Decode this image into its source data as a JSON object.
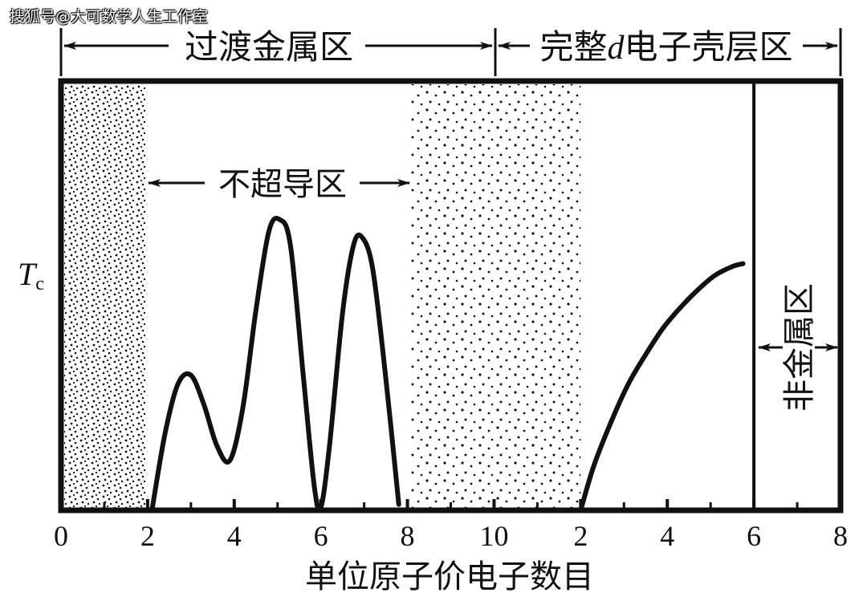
{
  "watermark": "搜狐号@大可数学人生工作室",
  "regions": {
    "transition": "过渡金属区",
    "filled_d_prefix": "完整",
    "filled_d_italic": "d",
    "filled_d_suffix": "电子壳层区",
    "non_super": "不超导区",
    "non_metal": "非金属区"
  },
  "chart_data": {
    "type": "line",
    "ylabel_main": "T",
    "ylabel_sub": "c",
    "xlabel": "单位原子价电子数目",
    "x_ticks": [
      "0",
      "2",
      "4",
      "6",
      "8",
      "10",
      "2",
      "4",
      "6",
      "8"
    ],
    "ylim": [
      0,
      1
    ],
    "series": [
      {
        "x": [
          2.1,
          2.4,
          2.7,
          3.0,
          3.3,
          3.6,
          3.9,
          4.2,
          4.5,
          4.8,
          5.05,
          5.3,
          5.6,
          5.85,
          6.0,
          6.2,
          6.5,
          6.75,
          6.95,
          7.2,
          7.5,
          7.8
        ],
        "y": [
          0.0,
          0.26,
          0.43,
          0.46,
          0.36,
          0.22,
          0.17,
          0.35,
          0.68,
          0.95,
          0.99,
          0.9,
          0.45,
          0.08,
          0.01,
          0.22,
          0.67,
          0.9,
          0.93,
          0.82,
          0.45,
          0.02
        ]
      },
      {
        "x": [
          12.0,
          12.3,
          12.7,
          13.1,
          13.5,
          13.9,
          14.3,
          14.7,
          15.1,
          15.5,
          15.75
        ],
        "y": [
          0.0,
          0.15,
          0.3,
          0.43,
          0.53,
          0.62,
          0.69,
          0.75,
          0.8,
          0.83,
          0.84
        ]
      }
    ],
    "shaded_ranges": [
      {
        "x0": 0,
        "x1": 2,
        "density": "dense"
      },
      {
        "x0": 8,
        "x1": 12,
        "density": "sparse"
      }
    ],
    "markers": {
      "filled_d_start": 10,
      "non_metal_start": 16,
      "axis_end": 18
    },
    "grid": false
  }
}
